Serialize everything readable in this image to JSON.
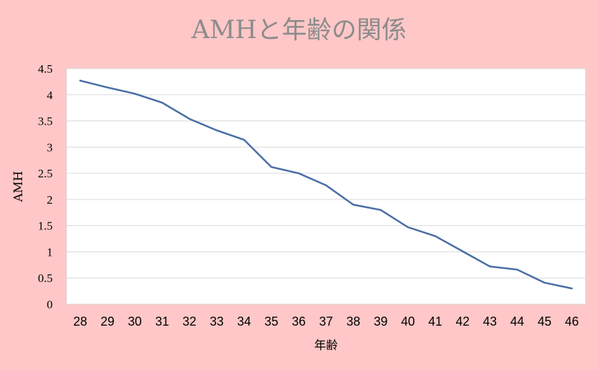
{
  "colors": {
    "background": "#ffc7c7",
    "plot_background": "#ffffff",
    "line": "#4a6fa5",
    "gridline": "#d9d9d9",
    "title": "#8c8c8c"
  },
  "chart_data": {
    "type": "line",
    "title": "AMHと年齢の関係",
    "xlabel": "年齢",
    "ylabel": "AMH",
    "categories": [
      "28",
      "29",
      "30",
      "31",
      "32",
      "33",
      "34",
      "35",
      "36",
      "37",
      "38",
      "39",
      "40",
      "41",
      "42",
      "43",
      "44",
      "45",
      "46"
    ],
    "y_ticks": [
      "0",
      "0.5",
      "1",
      "1.5",
      "2",
      "2.5",
      "3",
      "3.5",
      "4",
      "4.5"
    ],
    "ylim": [
      0,
      4.5
    ],
    "grid": true,
    "legend": false,
    "series": [
      {
        "values": [
          4.27,
          4.14,
          4.02,
          3.85,
          3.54,
          3.32,
          3.14,
          2.62,
          2.5,
          2.27,
          1.9,
          1.8,
          1.47,
          1.3,
          1.01,
          0.72,
          0.66,
          0.41,
          0.3
        ]
      }
    ]
  }
}
